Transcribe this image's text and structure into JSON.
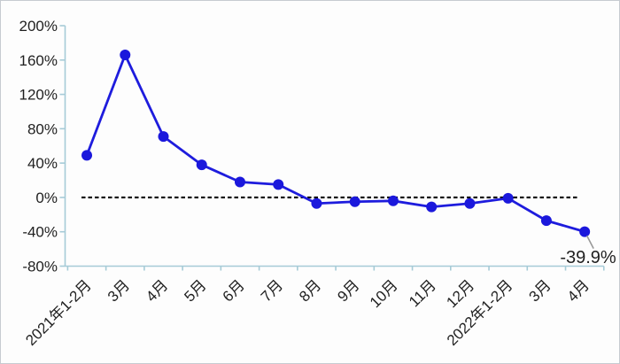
{
  "chart_data": {
    "type": "line",
    "categories": [
      "2021年1-2月",
      "3月",
      "4月",
      "5月",
      "6月",
      "7月",
      "8月",
      "9月",
      "10月",
      "11月",
      "12月",
      "2022年1-2月",
      "3月",
      "4月"
    ],
    "values": [
      49,
      166,
      71,
      38,
      18,
      15,
      -7,
      -5,
      -4,
      -11,
      -7,
      -1,
      -27,
      -39.9
    ],
    "title": "",
    "xlabel": "",
    "ylabel": "",
    "ylim": [
      -80,
      200
    ],
    "ytick_step": 40,
    "ytick_labels": [
      "200%",
      "160%",
      "120%",
      "80%",
      "40%",
      "0%",
      "-40%",
      "-80%"
    ],
    "zero_line": {
      "value": 0,
      "style": "dashed",
      "color": "#000000"
    },
    "annotation": {
      "text": "-39.9%",
      "point_index": 13
    },
    "legend": false,
    "grid": false,
    "colors": {
      "line": "#1e1cdd",
      "marker": "#1b18dc",
      "axis": "#a6cbd7",
      "text": "#1f1f1f",
      "leader": "#999999",
      "background": "#fdfdfd",
      "border": "#c7cbd1"
    }
  }
}
